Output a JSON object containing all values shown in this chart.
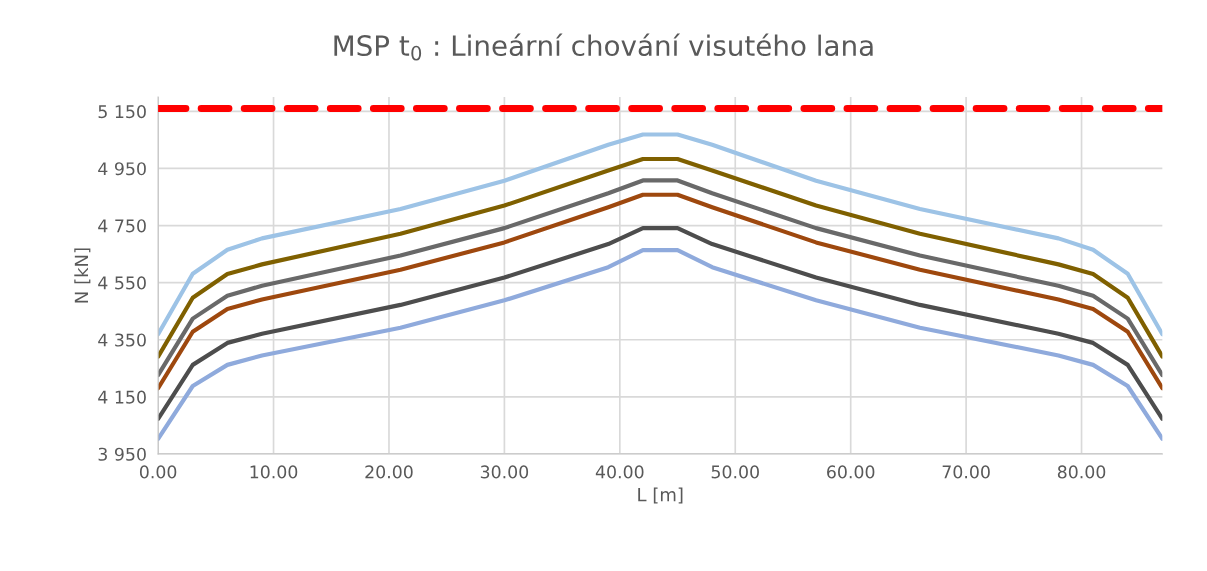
{
  "chart_data": {
    "type": "line",
    "title": "MSP t$_{0}$ : Lineární chování visutého lana",
    "xlabel": "L [m]",
    "ylabel": "N [kN]",
    "x": [
      0,
      3,
      6,
      9,
      21,
      30,
      39,
      42,
      45,
      48,
      57,
      66,
      78,
      81,
      84,
      87
    ],
    "series": [
      {
        "color": "#9dc3e6",
        "values": [
          4369,
          4581,
          4665,
          4705,
          4808,
          4907,
          5033,
          5069,
          5069,
          5033,
          4907,
          4808,
          4705,
          4665,
          4581,
          4369
        ]
      },
      {
        "color": "#7f6000",
        "values": [
          4291,
          4497,
          4580,
          4614,
          4721,
          4820,
          4943,
          4983,
          4983,
          4943,
          4820,
          4721,
          4614,
          4580,
          4497,
          4291
        ]
      },
      {
        "color": "#696969",
        "values": [
          4226,
          4424,
          4504,
          4539,
          4645,
          4741,
          4863,
          4908,
          4908,
          4863,
          4741,
          4645,
          4539,
          4504,
          4424,
          4226
        ]
      },
      {
        "color": "#9e480e",
        "values": [
          4180,
          4378,
          4458,
          4491,
          4595,
          4691,
          4814,
          4858,
          4858,
          4814,
          4691,
          4595,
          4491,
          4458,
          4378,
          4180
        ]
      },
      {
        "color": "#4d4d4d",
        "values": [
          4073,
          4262,
          4339,
          4371,
          4472,
          4568,
          4685,
          4741,
          4741,
          4685,
          4568,
          4472,
          4371,
          4339,
          4262,
          4073
        ]
      },
      {
        "color": "#8faadc",
        "values": [
          4003,
          4188,
          4262,
          4295,
          4392,
          4488,
          4604,
          4664,
          4664,
          4604,
          4488,
          4392,
          4295,
          4262,
          4188,
          4003
        ]
      }
    ],
    "ref_lines": [
      {
        "axis": "y",
        "value": 5160,
        "color": "#ff0000",
        "line_style": "dashed"
      }
    ],
    "xlim": [
      0,
      87
    ],
    "xticks": [
      {
        "value": 0,
        "label": "0.00"
      },
      {
        "value": 10,
        "label": "10.00"
      },
      {
        "value": 20,
        "label": "20.00"
      },
      {
        "value": 30,
        "label": "30.00"
      },
      {
        "value": 40,
        "label": "40.00"
      },
      {
        "value": 50,
        "label": "50.00"
      },
      {
        "value": 60,
        "label": "60.00"
      },
      {
        "value": 70,
        "label": "70.00"
      },
      {
        "value": 80,
        "label": "80.00"
      }
    ],
    "ylim": [
      3950,
      5200
    ],
    "yticks": [
      {
        "value": 3950,
        "label": "3 950"
      },
      {
        "value": 4150,
        "label": "4 150"
      },
      {
        "value": 4350,
        "label": "4 350"
      },
      {
        "value": 4550,
        "label": "4 550"
      },
      {
        "value": 4750,
        "label": "4 750"
      },
      {
        "value": 4950,
        "label": "4 950"
      },
      {
        "value": 5150,
        "label": "5 150"
      }
    ],
    "grid": true
  }
}
